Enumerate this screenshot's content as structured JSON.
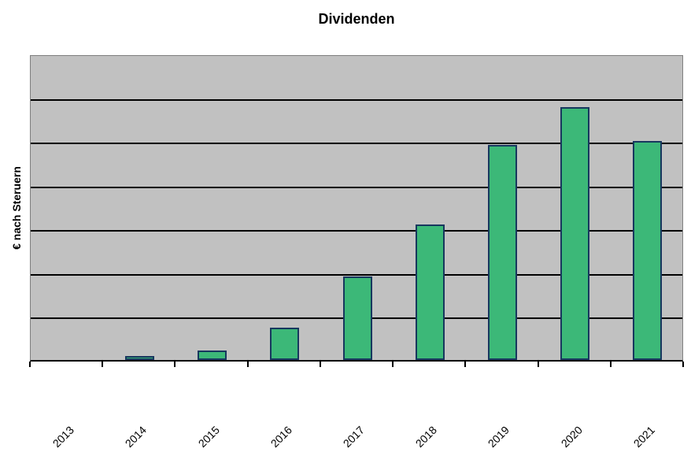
{
  "chart_data": {
    "type": "bar",
    "title": "Dividenden",
    "xlabel": "",
    "ylabel": "€ nach Steruern",
    "categories": [
      "2013",
      "2014",
      "2015",
      "2016",
      "2017",
      "2018",
      "2019",
      "2020",
      "2021"
    ],
    "values": [
      0,
      0.09,
      0.22,
      0.74,
      1.91,
      3.1,
      4.92,
      5.78,
      5.0
    ],
    "ylim": [
      0,
      7
    ],
    "y_tick_labels": [],
    "y_axis_numbers_visible": false,
    "gridlines": "horizontal, 7 equal divisions",
    "legend_position": "none",
    "colors": {
      "bar_fill": "#3CB878",
      "bar_border": "#17375E",
      "plot_background": "#C1C1C1",
      "gridline": "#000000",
      "plot_border": "#7F7F7F",
      "axis_line": "#000000",
      "text": "#000000",
      "page_background": "#FFFFFF"
    }
  }
}
